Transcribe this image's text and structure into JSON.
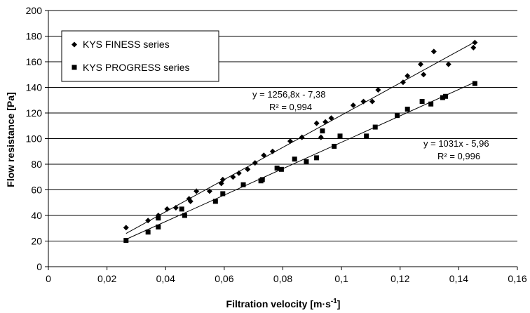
{
  "chart_data": {
    "type": "scatter",
    "xlabel_main": "Filtration velocity [m·s",
    "xlabel_sup": "-1",
    "xlabel_end": "]",
    "ylabel": "Flow resistance [Pa]",
    "xlim": [
      0,
      0.16
    ],
    "ylim": [
      0,
      200
    ],
    "x_ticks": [
      0,
      0.02,
      0.04,
      0.06,
      0.08,
      0.1,
      0.12,
      0.14,
      0.16
    ],
    "x_tick_labels": [
      "0",
      "0,02",
      "0,04",
      "0,06",
      "0,08",
      "0,1",
      "0,12",
      "0,14",
      "0,16"
    ],
    "y_ticks": [
      0,
      20,
      40,
      60,
      80,
      100,
      120,
      140,
      160,
      180,
      200
    ],
    "y_tick_labels": [
      "0",
      "20",
      "40",
      "60",
      "80",
      "100",
      "120",
      "140",
      "160",
      "180",
      "200"
    ],
    "grid": "horizontal",
    "legend_position": "top-left",
    "series": [
      {
        "name": "KYS FINESS series",
        "marker": "diamond",
        "color": "#000000",
        "points": [
          [
            0.0265,
            30.5
          ],
          [
            0.034,
            36
          ],
          [
            0.0375,
            40
          ],
          [
            0.0405,
            45
          ],
          [
            0.0435,
            46
          ],
          [
            0.048,
            53
          ],
          [
            0.0485,
            51
          ],
          [
            0.0505,
            59
          ],
          [
            0.055,
            59
          ],
          [
            0.059,
            65
          ],
          [
            0.0595,
            68
          ],
          [
            0.063,
            70
          ],
          [
            0.065,
            73
          ],
          [
            0.068,
            76
          ],
          [
            0.0705,
            81
          ],
          [
            0.0735,
            87
          ],
          [
            0.0765,
            90
          ],
          [
            0.0825,
            98
          ],
          [
            0.0865,
            101
          ],
          [
            0.0915,
            112
          ],
          [
            0.093,
            101
          ],
          [
            0.0945,
            113
          ],
          [
            0.0965,
            116
          ],
          [
            0.104,
            126
          ],
          [
            0.1075,
            129
          ],
          [
            0.1105,
            129
          ],
          [
            0.1125,
            138
          ],
          [
            0.121,
            144
          ],
          [
            0.1225,
            149
          ],
          [
            0.127,
            158
          ],
          [
            0.128,
            150
          ],
          [
            0.1315,
            168
          ],
          [
            0.1365,
            158
          ],
          [
            0.145,
            171
          ],
          [
            0.1455,
            175
          ]
        ],
        "fit": {
          "slope": 1256.8,
          "intercept": -7.38,
          "x_range": [
            0.0265,
            0.145
          ]
        }
      },
      {
        "name": "KYS PROGRESS series",
        "marker": "square",
        "color": "#000000",
        "points": [
          [
            0.0265,
            20.5
          ],
          [
            0.034,
            27
          ],
          [
            0.0375,
            31
          ],
          [
            0.0375,
            38
          ],
          [
            0.0455,
            45
          ],
          [
            0.0465,
            40
          ],
          [
            0.057,
            51
          ],
          [
            0.0595,
            57
          ],
          [
            0.0665,
            64
          ],
          [
            0.0725,
            67
          ],
          [
            0.073,
            68
          ],
          [
            0.078,
            77
          ],
          [
            0.0795,
            76
          ],
          [
            0.084,
            84
          ],
          [
            0.088,
            82
          ],
          [
            0.0915,
            85
          ],
          [
            0.0935,
            106
          ],
          [
            0.0975,
            94
          ],
          [
            0.0995,
            102
          ],
          [
            0.1085,
            102
          ],
          [
            0.1115,
            109
          ],
          [
            0.119,
            118
          ],
          [
            0.1225,
            123
          ],
          [
            0.1275,
            129
          ],
          [
            0.1305,
            127
          ],
          [
            0.1345,
            132
          ],
          [
            0.1355,
            133
          ],
          [
            0.1455,
            143
          ]
        ],
        "fit": {
          "slope": 1031,
          "intercept": -5.96,
          "x_range": [
            0.0265,
            0.1455
          ]
        }
      }
    ],
    "annotations": {
      "finess_eq": "y = 1256,8x - 7,38",
      "finess_r2": "R² = 0,994",
      "progress_eq": "y = 1031x - 5,96",
      "progress_r2": "R² = 0,996"
    }
  }
}
